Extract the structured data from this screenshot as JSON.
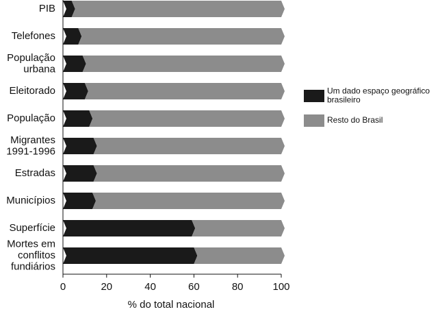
{
  "chart_data": {
    "type": "stacked-bar-horizontal",
    "x_label": "% do total nacional",
    "categories": [
      "PIB",
      "Telefones",
      "População\nurbana",
      "Eleitorado",
      "População",
      "Migrantes\n1991-1996",
      "Estradas",
      "Municípios",
      "Superfície",
      "Mortes em\nconflitos\nfundiários"
    ],
    "series": [
      {
        "name": "Um dado espaço geográfico\nbrasileiro",
        "color": "#1a1a1a",
        "values": [
          4,
          7,
          9,
          10,
          12,
          14,
          14,
          13.5,
          59,
          60
        ]
      },
      {
        "name": "Resto do Brasil",
        "color": "#8c8c8c",
        "values": [
          96,
          93,
          91,
          90,
          88,
          86,
          86,
          86.5,
          41,
          40
        ]
      }
    ],
    "xlim": [
      0,
      100
    ],
    "xticks": [
      0,
      20,
      40,
      60,
      80,
      100
    ],
    "legend": "right"
  }
}
